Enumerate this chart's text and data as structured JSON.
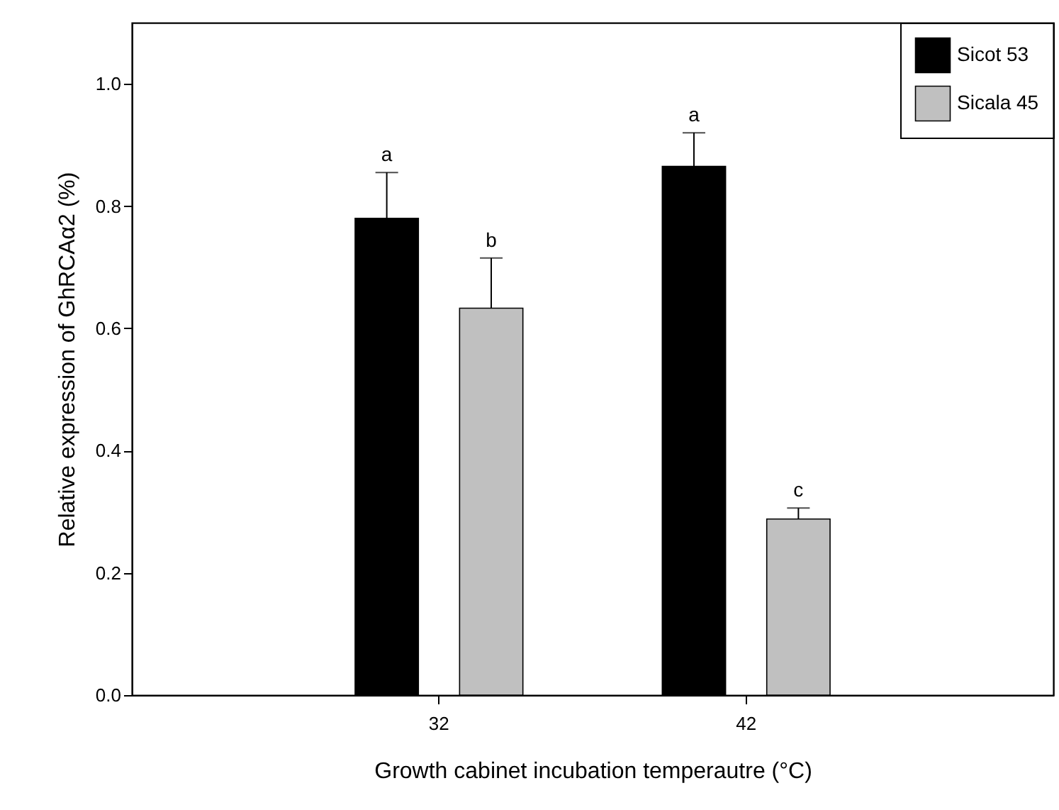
{
  "chart_data": {
    "type": "bar",
    "xlabel": "Growth cabinet incubation temperautre (°C)",
    "ylabel": "Relative expression of GhRCAα2 (%)",
    "categories": [
      "32",
      "42"
    ],
    "series": [
      {
        "name": "Sicot 53",
        "color": "#000000",
        "values": [
          0.78,
          0.865
        ],
        "errors": [
          0.075,
          0.055
        ]
      },
      {
        "name": "Sicala 45",
        "color": "#c0c0c0",
        "values": [
          0.633,
          0.288
        ],
        "errors": [
          0.082,
          0.018
        ]
      }
    ],
    "ylim": [
      0,
      1.1
    ],
    "yticks": [
      {
        "value": 0,
        "label": "0.0"
      },
      0.2,
      0.4,
      0.6,
      0.8,
      {
        "value": 1,
        "label": "1.0"
      }
    ],
    "grid": false,
    "legend": "top right",
    "annotations": [
      "a",
      "b",
      "a",
      "c"
    ]
  }
}
